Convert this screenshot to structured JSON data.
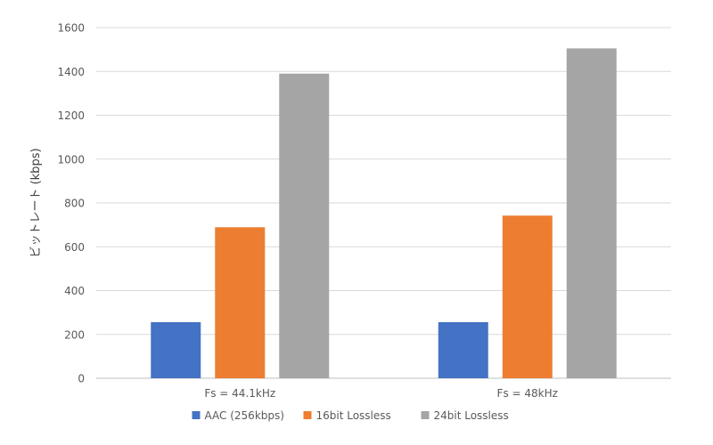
{
  "chart_data": {
    "type": "bar",
    "title": "",
    "xlabel": "",
    "ylabel": "ビットレート (kbps)",
    "categories": [
      "Fs = 44.1kHz",
      "Fs = 48kHz"
    ],
    "series": [
      {
        "name": "AAC (256kbps)",
        "values": [
          256,
          256
        ],
        "color": "#4472C4"
      },
      {
        "name": "16bit Lossless",
        "values": [
          689,
          742
        ],
        "color": "#ED7D31"
      },
      {
        "name": "24bit Lossless",
        "values": [
          1390,
          1505
        ],
        "color": "#A5A5A5"
      }
    ],
    "ylim": [
      0,
      1600
    ],
    "yticks": [
      "0",
      "200",
      "400",
      "600",
      "800",
      "1000",
      "1200",
      "1400",
      "1600"
    ],
    "grid": true,
    "legend_position": "bottom"
  }
}
